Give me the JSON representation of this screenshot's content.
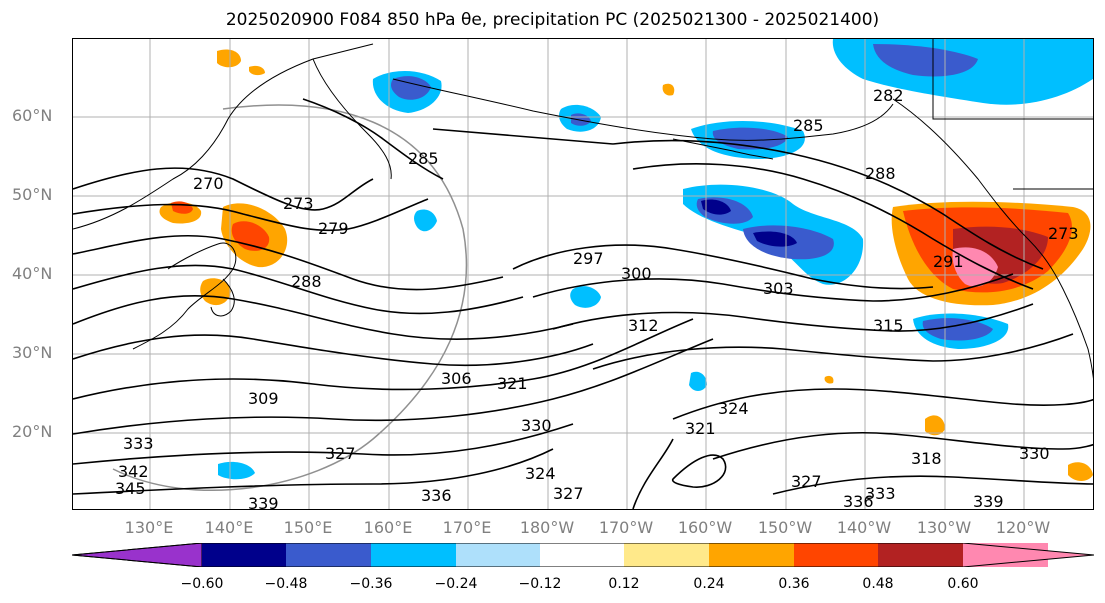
{
  "title": "2025020900 F084 850 hPa θe, precipitation PC (2025021300 - 2025021400)",
  "map": {
    "lat_labels": [
      "60°N",
      "50°N",
      "40°N",
      "30°N",
      "20°N"
    ],
    "lon_labels": [
      "130°E",
      "140°E",
      "150°E",
      "160°E",
      "170°E",
      "180°W",
      "170°W",
      "160°W",
      "150°W",
      "140°W",
      "130°W",
      "120°W"
    ],
    "contour_labels": [
      "270",
      "273",
      "279",
      "288",
      "285",
      "297",
      "300",
      "303",
      "312",
      "315",
      "306",
      "309",
      "321",
      "324",
      "321",
      "318",
      "330",
      "333",
      "327",
      "336",
      "339",
      "342",
      "345",
      "327",
      "330",
      "333",
      "336",
      "339",
      "282",
      "288",
      "291",
      "273",
      "285",
      "324",
      "327"
    ],
    "colors": {
      "grid": "#b0b0b0",
      "coast": "#000000",
      "contour": "#000000"
    }
  },
  "colorbar": {
    "ticks": [
      "−0.60",
      "−0.48",
      "−0.36",
      "−0.24",
      "−0.12",
      "0.12",
      "0.24",
      "0.36",
      "0.48",
      "0.60"
    ],
    "colors": [
      "#9932cc",
      "#00008b",
      "#3a5bcd",
      "#00bfff",
      "#aee0fb",
      "#ffffff",
      "#ffe98a",
      "#ffa500",
      "#ff4500",
      "#b22222",
      "#ff88b0"
    ]
  }
}
